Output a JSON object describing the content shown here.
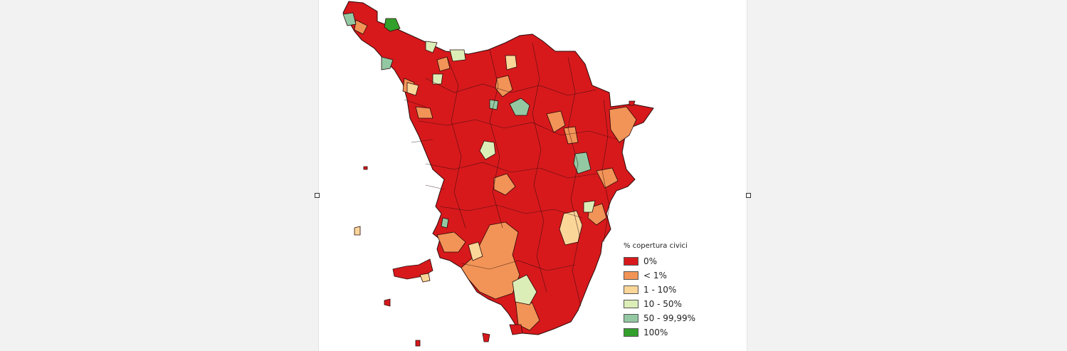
{
  "legend": {
    "title": "% copertura civici",
    "items": [
      {
        "label": "0%",
        "color": "#d7191c"
      },
      {
        "label": "< 1%",
        "color": "#f29457"
      },
      {
        "label": "1 - 10%",
        "color": "#fbd699"
      },
      {
        "label": "10 - 50%",
        "color": "#dceeb7"
      },
      {
        "label": "50 - 99,99%",
        "color": "#93c8a3"
      },
      {
        "label": "100%",
        "color": "#34a02c"
      }
    ]
  }
}
